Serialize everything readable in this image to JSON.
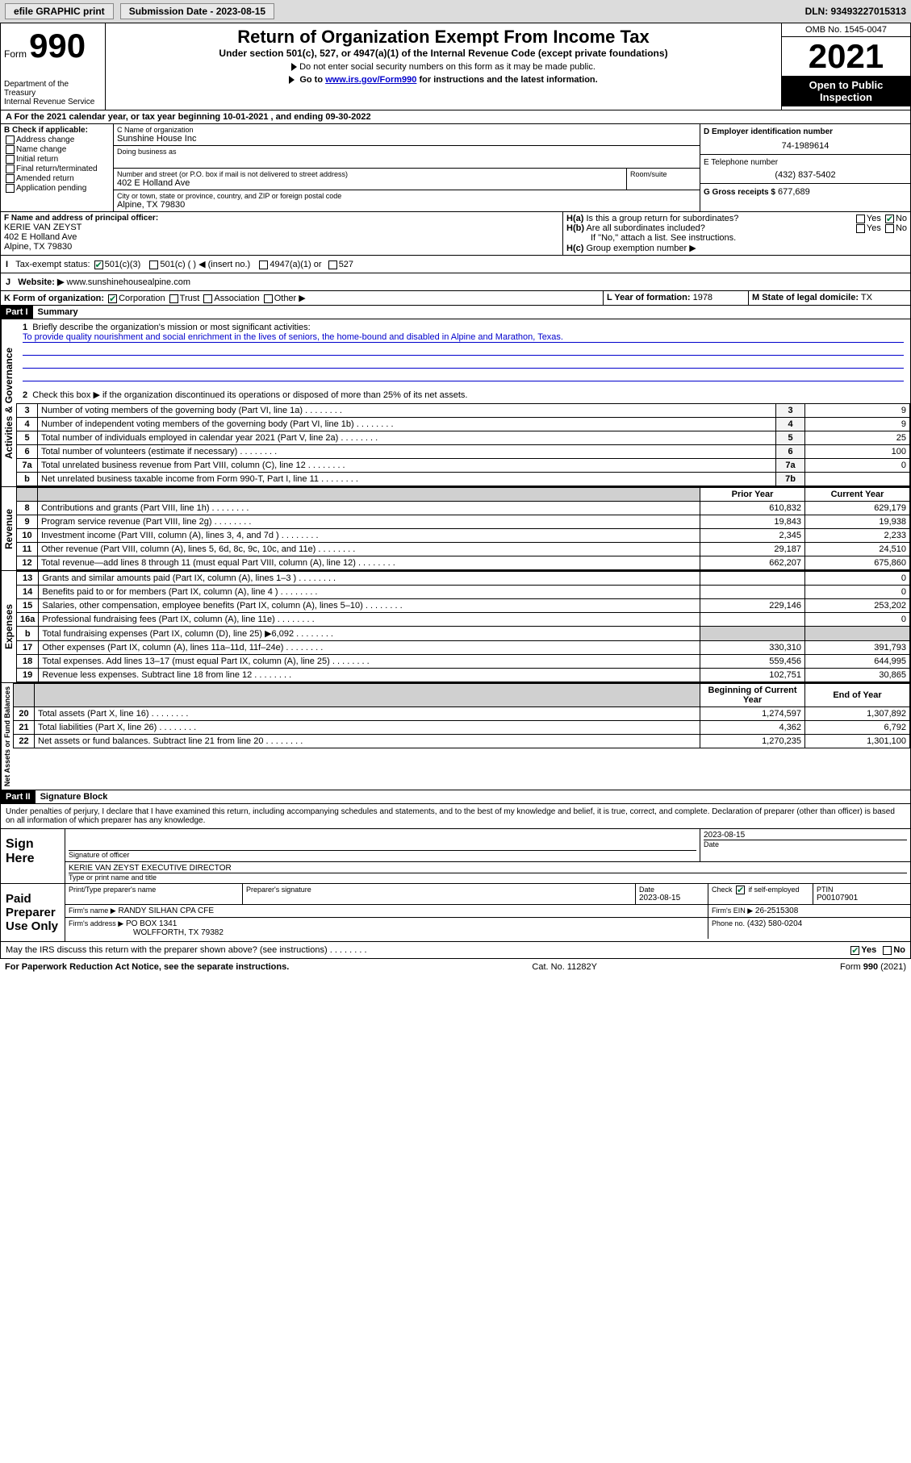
{
  "topbar": {
    "efile": "efile GRAPHIC print",
    "sub_label": "Submission Date - 2023-08-15",
    "dln": "DLN: 93493227015313"
  },
  "header": {
    "form_word": "Form",
    "form_num": "990",
    "dept": "Department of the Treasury",
    "irs": "Internal Revenue Service",
    "title": "Return of Organization Exempt From Income Tax",
    "sub1": "Under section 501(c), 527, or 4947(a)(1) of the Internal Revenue Code (except private foundations)",
    "sub2": "Do not enter social security numbers on this form as it may be made public.",
    "sub3_pre": "Go to ",
    "sub3_link": "www.irs.gov/Form990",
    "sub3_post": " for instructions and the latest information.",
    "omb": "OMB No. 1545-0047",
    "year": "2021",
    "open": "Open to Public Inspection"
  },
  "lineA": {
    "text": "For the 2021 calendar year, or tax year beginning 10-01-2021   , and ending 09-30-2022"
  },
  "boxB": {
    "label": "B Check if applicable:",
    "opts": [
      "Address change",
      "Name change",
      "Initial return",
      "Final return/terminated",
      "Amended return",
      "Application pending"
    ]
  },
  "boxC": {
    "name_label": "C Name of organization",
    "name": "Sunshine House Inc",
    "dba_label": "Doing business as",
    "addr_label": "Number and street (or P.O. box if mail is not delivered to street address)",
    "room_label": "Room/suite",
    "addr": "402 E Holland Ave",
    "city_label": "City or town, state or province, country, and ZIP or foreign postal code",
    "city": "Alpine, TX  79830"
  },
  "boxD": {
    "label": "D Employer identification number",
    "val": "74-1989614"
  },
  "boxE": {
    "label": "E Telephone number",
    "val": "(432) 837-5402"
  },
  "boxG": {
    "label": "G Gross receipts $",
    "val": "677,689"
  },
  "boxF": {
    "label": "F Name and address of principal officer:",
    "name": "KERIE VAN ZEYST",
    "addr": "402 E Holland Ave",
    "city": "Alpine, TX  79830"
  },
  "boxH": {
    "a": "Is this a group return for subordinates?",
    "b": "Are all subordinates included?",
    "note": "If \"No,\" attach a list. See instructions.",
    "c": "Group exemption number ▶",
    "yes": "Yes",
    "no": "No"
  },
  "lineI": {
    "label": "Tax-exempt status:",
    "opts": [
      "501(c)(3)",
      "501(c) (  ) ◀ (insert no.)",
      "4947(a)(1) or",
      "527"
    ]
  },
  "lineJ": {
    "label": "Website: ▶",
    "val": "www.sunshinehousealpine.com"
  },
  "lineK": {
    "label": "K Form of organization:",
    "opts": [
      "Corporation",
      "Trust",
      "Association",
      "Other ▶"
    ]
  },
  "lineL": {
    "label": "L Year of formation:",
    "val": "1978"
  },
  "lineM": {
    "label": "M State of legal domicile:",
    "val": "TX"
  },
  "part1": {
    "header": "Part I",
    "title": "Summary",
    "side_act": "Activities & Governance",
    "side_rev": "Revenue",
    "side_exp": "Expenses",
    "side_net": "Net Assets or Fund Balances",
    "l1": "Briefly describe the organization's mission or most significant activities:",
    "l1_text": "To provide quality nourishment and social enrichment in the lives of seniors, the home-bound and disabled in Alpine and Marathon, Texas.",
    "l2": "Check this box ▶       if the organization discontinued its operations or disposed of more than 25% of its net assets.",
    "rows_gov": [
      {
        "n": "3",
        "d": "Number of voting members of the governing body (Part VI, line 1a)",
        "k": "3",
        "v": "9"
      },
      {
        "n": "4",
        "d": "Number of independent voting members of the governing body (Part VI, line 1b)",
        "k": "4",
        "v": "9"
      },
      {
        "n": "5",
        "d": "Total number of individuals employed in calendar year 2021 (Part V, line 2a)",
        "k": "5",
        "v": "25"
      },
      {
        "n": "6",
        "d": "Total number of volunteers (estimate if necessary)",
        "k": "6",
        "v": "100"
      },
      {
        "n": "7a",
        "d": "Total unrelated business revenue from Part VIII, column (C), line 12",
        "k": "7a",
        "v": "0"
      },
      {
        "n": "b",
        "d": "Net unrelated business taxable income from Form 990-T, Part I, line 11",
        "k": "7b",
        "v": ""
      }
    ],
    "col_prior": "Prior Year",
    "col_curr": "Current Year",
    "rows_rev": [
      {
        "n": "8",
        "d": "Contributions and grants (Part VIII, line 1h)",
        "p": "610,832",
        "c": "629,179"
      },
      {
        "n": "9",
        "d": "Program service revenue (Part VIII, line 2g)",
        "p": "19,843",
        "c": "19,938"
      },
      {
        "n": "10",
        "d": "Investment income (Part VIII, column (A), lines 3, 4, and 7d )",
        "p": "2,345",
        "c": "2,233"
      },
      {
        "n": "11",
        "d": "Other revenue (Part VIII, column (A), lines 5, 6d, 8c, 9c, 10c, and 11e)",
        "p": "29,187",
        "c": "24,510"
      },
      {
        "n": "12",
        "d": "Total revenue—add lines 8 through 11 (must equal Part VIII, column (A), line 12)",
        "p": "662,207",
        "c": "675,860"
      }
    ],
    "rows_exp": [
      {
        "n": "13",
        "d": "Grants and similar amounts paid (Part IX, column (A), lines 1–3 )",
        "p": "",
        "c": "0"
      },
      {
        "n": "14",
        "d": "Benefits paid to or for members (Part IX, column (A), line 4 )",
        "p": "",
        "c": "0"
      },
      {
        "n": "15",
        "d": "Salaries, other compensation, employee benefits (Part IX, column (A), lines 5–10)",
        "p": "229,146",
        "c": "253,202"
      },
      {
        "n": "16a",
        "d": "Professional fundraising fees (Part IX, column (A), line 11e)",
        "p": "",
        "c": "0"
      },
      {
        "n": "b",
        "d": "Total fundraising expenses (Part IX, column (D), line 25) ▶6,092",
        "p": "GRAY",
        "c": "GRAY"
      },
      {
        "n": "17",
        "d": "Other expenses (Part IX, column (A), lines 11a–11d, 11f–24e)",
        "p": "330,310",
        "c": "391,793"
      },
      {
        "n": "18",
        "d": "Total expenses. Add lines 13–17 (must equal Part IX, column (A), line 25)",
        "p": "559,456",
        "c": "644,995"
      },
      {
        "n": "19",
        "d": "Revenue less expenses. Subtract line 18 from line 12",
        "p": "102,751",
        "c": "30,865"
      }
    ],
    "col_beg": "Beginning of Current Year",
    "col_end": "End of Year",
    "rows_net": [
      {
        "n": "20",
        "d": "Total assets (Part X, line 16)",
        "p": "1,274,597",
        "c": "1,307,892"
      },
      {
        "n": "21",
        "d": "Total liabilities (Part X, line 26)",
        "p": "4,362",
        "c": "6,792"
      },
      {
        "n": "22",
        "d": "Net assets or fund balances. Subtract line 21 from line 20",
        "p": "1,270,235",
        "c": "1,301,100"
      }
    ]
  },
  "part2": {
    "header": "Part II",
    "title": "Signature Block",
    "decl": "Under penalties of perjury, I declare that I have examined this return, including accompanying schedules and statements, and to the best of my knowledge and belief, it is true, correct, and complete. Declaration of preparer (other than officer) is based on all information of which preparer has any knowledge.",
    "sign_here": "Sign Here",
    "sig_officer": "Signature of officer",
    "sig_date": "2023-08-15",
    "date_label": "Date",
    "sig_name": "KERIE VAN ZEYST  EXECUTIVE DIRECTOR",
    "sig_name_label": "Type or print name and title",
    "paid": "Paid Preparer Use Only",
    "prep_name_label": "Print/Type preparer's name",
    "prep_sig_label": "Preparer's signature",
    "prep_date_label": "Date",
    "prep_date": "2023-08-15",
    "self_emp": "Check        if self-employed",
    "ptin_label": "PTIN",
    "ptin": "P00107901",
    "firm_name_label": "Firm's name    ▶",
    "firm_name": "RANDY SILHAN CPA CFE",
    "firm_ein_label": "Firm's EIN ▶",
    "firm_ein": "26-2515308",
    "firm_addr_label": "Firm's address ▶",
    "firm_addr1": "PO BOX 1341",
    "firm_addr2": "WOLFFORTH, TX  79382",
    "firm_phone_label": "Phone no.",
    "firm_phone": "(432) 580-0204",
    "may_irs": "May the IRS discuss this return with the preparer shown above? (see instructions)"
  },
  "footer": {
    "left": "For Paperwork Reduction Act Notice, see the separate instructions.",
    "mid": "Cat. No. 11282Y",
    "right": "Form 990 (2021)"
  },
  "colors": {
    "link": "#0000cc",
    "check": "#007a3d",
    "gray_bg": "#d0d0d0"
  }
}
